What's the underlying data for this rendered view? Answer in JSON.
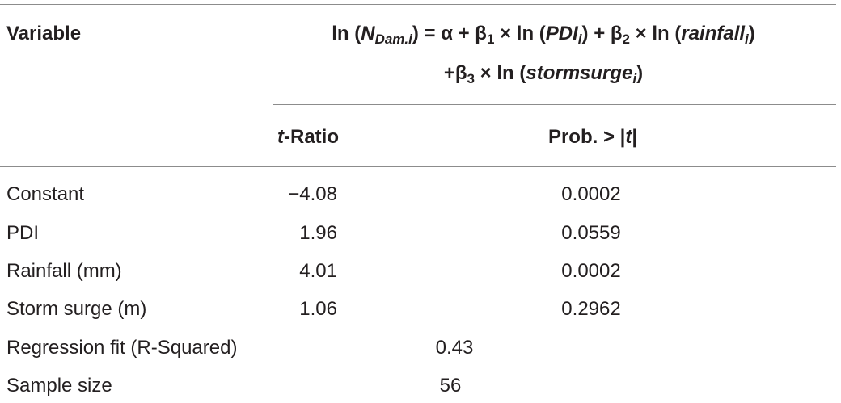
{
  "header": {
    "variable": "Variable",
    "formula": {
      "line1": [
        "ln (",
        "N",
        "Dam.i",
        ") = α + β",
        "1",
        " × ln (",
        "PDI",
        "i",
        ") + β",
        "2",
        " × ln (",
        "rainfall",
        "i",
        ")"
      ],
      "line2": [
        "+β",
        "3",
        " × ln (",
        "stormsurge",
        "i",
        ")"
      ]
    },
    "t_ratio": [
      "t",
      "-Ratio"
    ],
    "prob": [
      "Prob. > |",
      "t",
      "|"
    ]
  },
  "table": {
    "rows": [
      [
        "Constant",
        "−4.08",
        "0.0002"
      ],
      [
        "PDI",
        "1.96",
        "0.0559"
      ],
      [
        "Rainfall (mm)",
        "4.01",
        "0.0002"
      ],
      [
        "Storm surge (m)",
        "1.06",
        "0.2962"
      ]
    ],
    "summary": [
      [
        "Regression fit (R-Squared)",
        "0.43"
      ],
      [
        "Sample size",
        "56"
      ]
    ]
  }
}
